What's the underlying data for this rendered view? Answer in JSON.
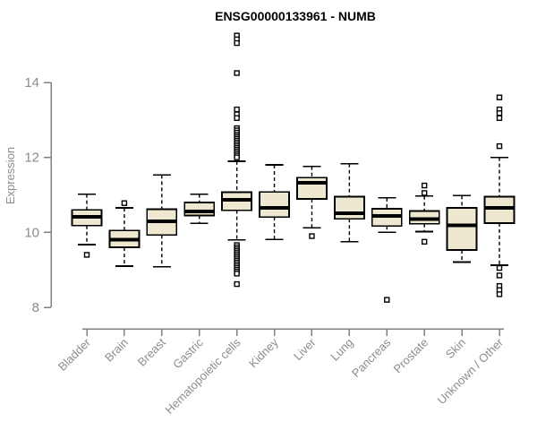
{
  "chart_data": {
    "type": "boxplot",
    "title": "ENSG00000133961 - NUMB",
    "ylabel": "Expression",
    "xlabel": "",
    "yticks": [
      8,
      10,
      12,
      14
    ],
    "ylim": [
      7.7,
      15.4
    ],
    "grid": false,
    "legend": false,
    "categories": [
      "Bladder",
      "Brain",
      "Breast",
      "Gastric",
      "Hematopoietic cells",
      "Kidney",
      "Liver",
      "Lung",
      "Pancreas",
      "Prostate",
      "Skin",
      "Unknown / Other"
    ],
    "series": [
      {
        "label": "Bladder",
        "low": 9.67,
        "q1": 10.18,
        "median": 10.42,
        "q3": 10.6,
        "high": 11.02,
        "outliers": [
          9.4
        ]
      },
      {
        "label": "Brain",
        "low": 9.1,
        "q1": 9.6,
        "median": 9.81,
        "q3": 10.05,
        "high": 10.65,
        "outliers": [
          10.78
        ]
      },
      {
        "label": "Breast",
        "low": 9.08,
        "q1": 9.93,
        "median": 10.29,
        "q3": 10.62,
        "high": 11.53,
        "outliers": []
      },
      {
        "label": "Gastric",
        "low": 10.24,
        "q1": 10.45,
        "median": 10.56,
        "q3": 10.8,
        "high": 11.02,
        "outliers": []
      },
      {
        "label": "Hematopoietic cells",
        "low": 9.8,
        "q1": 10.59,
        "median": 10.87,
        "q3": 11.07,
        "high": 11.9,
        "outliers": [
          15.25,
          15.15,
          15.05,
          14.25,
          13.28,
          13.15,
          13.05,
          12.78,
          12.72,
          12.66,
          12.6,
          12.55,
          12.5,
          12.45,
          12.4,
          12.35,
          12.3,
          12.25,
          12.2,
          12.15,
          12.1,
          12.05,
          12.0,
          9.66,
          9.6,
          9.55,
          9.5,
          9.45,
          9.4,
          9.35,
          9.3,
          9.25,
          9.2,
          9.15,
          9.1,
          9.05,
          9.0,
          8.95,
          8.9,
          8.62
        ]
      },
      {
        "label": "Kidney",
        "low": 9.81,
        "q1": 10.41,
        "median": 10.65,
        "q3": 11.08,
        "high": 11.8,
        "outliers": []
      },
      {
        "label": "Liver",
        "low": 10.12,
        "q1": 10.89,
        "median": 11.32,
        "q3": 11.46,
        "high": 11.76,
        "outliers": [
          9.9
        ]
      },
      {
        "label": "Lung",
        "low": 9.75,
        "q1": 10.36,
        "median": 10.51,
        "q3": 10.95,
        "high": 11.83,
        "outliers": []
      },
      {
        "label": "Pancreas",
        "low": 10.0,
        "q1": 10.17,
        "median": 10.44,
        "q3": 10.63,
        "high": 10.92,
        "outliers": [
          8.2
        ]
      },
      {
        "label": "Prostate",
        "low": 10.02,
        "q1": 10.23,
        "median": 10.35,
        "q3": 10.57,
        "high": 10.97,
        "outliers": [
          11.25,
          11.05,
          9.75
        ]
      },
      {
        "label": "Skin",
        "low": 9.21,
        "q1": 9.53,
        "median": 10.19,
        "q3": 10.65,
        "high": 10.98,
        "outliers": []
      },
      {
        "label": "Unknown / Other",
        "low": 9.12,
        "q1": 10.25,
        "median": 10.65,
        "q3": 10.95,
        "high": 12.0,
        "outliers": [
          13.6,
          13.28,
          13.18,
          13.05,
          12.3,
          9.05,
          8.85,
          8.57,
          8.46,
          8.35
        ]
      }
    ],
    "colors": {
      "box_fill": "#EEE8D0",
      "box_stroke": "#000000",
      "axis": "#808080",
      "axis_text": "#8C8C8C",
      "title_text": "#000000",
      "background": "#FFFFFF"
    }
  }
}
